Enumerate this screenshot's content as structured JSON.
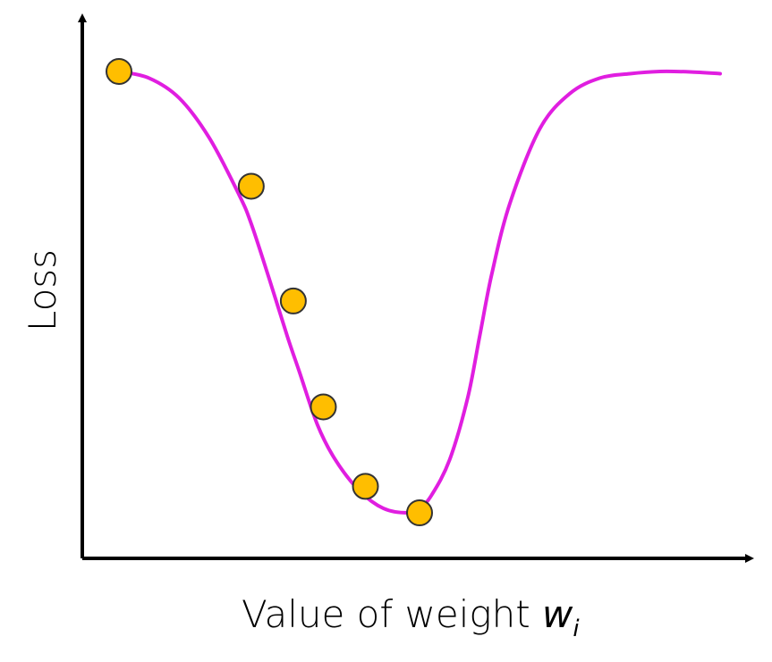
{
  "chart_data": {
    "type": "line",
    "title": "",
    "xlabel": "Value of weight ",
    "xlabel_var": "w",
    "xlabel_sub": "i",
    "ylabel": "Loss",
    "grid": false,
    "legend": "none",
    "xlim": [
      0,
      1
    ],
    "ylim": [
      0,
      1
    ],
    "series": [
      {
        "type": "line",
        "color": "#e01ee0",
        "x": [
          0.0,
          0.05,
          0.1,
          0.15,
          0.2,
          0.22,
          0.25,
          0.28,
          0.3,
          0.33,
          0.36,
          0.4,
          0.44,
          0.48,
          0.5,
          0.52,
          0.55,
          0.58,
          0.6,
          0.62,
          0.65,
          0.7,
          0.75,
          0.8,
          0.85,
          0.9,
          0.95,
          1.0
        ],
        "y": [
          1.0,
          0.985,
          0.94,
          0.85,
          0.72,
          0.655,
          0.53,
          0.4,
          0.32,
          0.2,
          0.12,
          0.05,
          0.01,
          0.0,
          0.01,
          0.04,
          0.12,
          0.26,
          0.4,
          0.54,
          0.7,
          0.87,
          0.95,
          0.985,
          0.995,
          1.0,
          0.999,
          0.995
        ]
      },
      {
        "type": "scatter",
        "color": "#ffbe00",
        "stroke": "#333333",
        "x": [
          0.0,
          0.22,
          0.29,
          0.34,
          0.41,
          0.5
        ],
        "y": [
          1.0,
          0.74,
          0.48,
          0.24,
          0.06,
          0.0
        ]
      }
    ]
  }
}
